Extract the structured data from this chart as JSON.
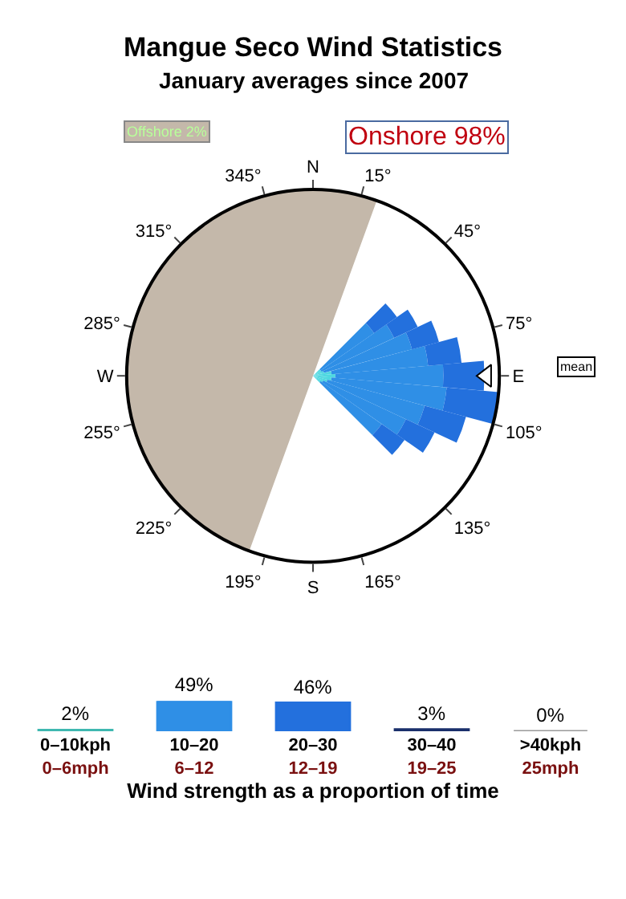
{
  "chart_data": [
    {
      "type": "other",
      "title": "Mangue Seco Wind Statistics",
      "subtitle": "January averages since 2007",
      "annotations": [
        "Offshore 2%",
        "Onshore 98%",
        "mean",
        "N",
        "15°",
        "45°",
        "75°",
        "E",
        "105°",
        "135°",
        "165°",
        "S",
        "195°",
        "225°",
        "255°",
        "W",
        "285°",
        "315°",
        "345°"
      ]
    },
    {
      "type": "bar",
      "xlabel": "Wind strength as a proportion of time",
      "categories": [
        "0–10kph\n0–6mph",
        "10–20\n6–12",
        "20–30\n12–19",
        "30–40\n19–25",
        ">40kph\n25mph"
      ],
      "values": [
        2,
        49,
        46,
        3,
        0
      ],
      "colors": [
        "#3fb8b0",
        "#2f8fe6",
        "#2370dd",
        "#1a2f6b",
        "#999999"
      ],
      "value_labels": [
        "2%",
        "49%",
        "46%",
        "3%",
        "0%"
      ]
    }
  ]
}
